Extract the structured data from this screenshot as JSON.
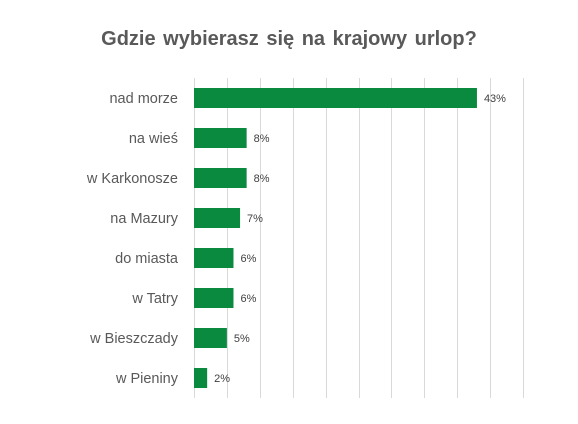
{
  "chart_data": {
    "type": "bar",
    "orientation": "horizontal",
    "title": "Gdzie wybierasz się na krajowy  urlop?",
    "categories": [
      "nad morze",
      "na wieś",
      "w Karkonosze",
      "na Mazury",
      "do miasta",
      "w Tatry",
      "w Bieszczady",
      "w Pieniny"
    ],
    "values": [
      43,
      8,
      8,
      7,
      6,
      6,
      5,
      2
    ],
    "value_labels": [
      "43%",
      "8%",
      "8%",
      "7%",
      "6%",
      "6%",
      "5%",
      "2%"
    ],
    "value_unit": "%",
    "xlim": [
      0,
      50
    ],
    "grid": true,
    "legend": "none",
    "bar_color": "#0a8a3f",
    "grid_color": "#d9d9d9"
  }
}
